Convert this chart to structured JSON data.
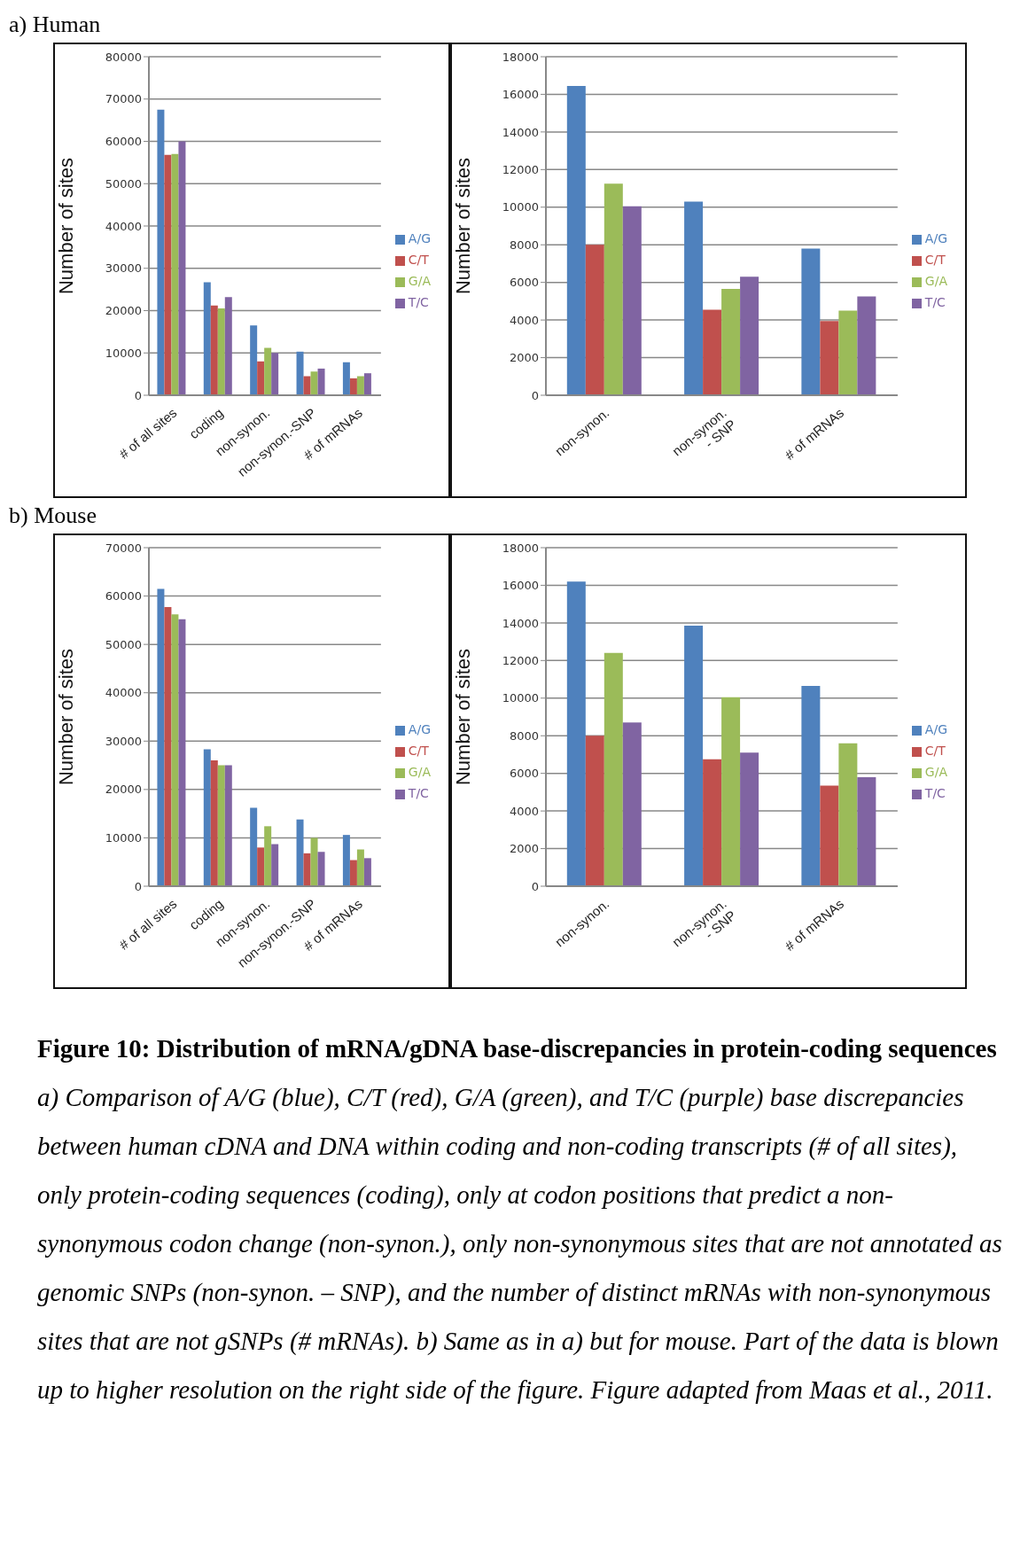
{
  "chart_data": [
    {
      "type": "bar",
      "title": "a) Human",
      "ylabel": "Number of sites",
      "categories": [
        "# of all sites",
        "coding",
        "non-synon.",
        "non-synon.-SNP",
        "# of mRNAs"
      ],
      "series": [
        {
          "name": "A/G",
          "color": "#4f81bd",
          "values": [
            67500,
            26700,
            16500,
            10300,
            7800
          ]
        },
        {
          "name": "C/T",
          "color": "#c0504d",
          "values": [
            56800,
            21200,
            8000,
            4500,
            4000
          ]
        },
        {
          "name": "G/A",
          "color": "#9bbb59",
          "values": [
            57000,
            20500,
            11200,
            5600,
            4500
          ]
        },
        {
          "name": "T/C",
          "color": "#8064a2",
          "values": [
            60000,
            23200,
            10000,
            6300,
            5200
          ]
        }
      ],
      "ylim": [
        0,
        80000
      ],
      "yticks": [
        0,
        10000,
        20000,
        30000,
        40000,
        50000,
        60000,
        70000,
        80000
      ],
      "grid": "y",
      "legend": "right"
    },
    {
      "type": "bar",
      "ylabel": "Number of sites",
      "categories": [
        "non-synon.",
        "non-synon.\n- SNP",
        "# of mRNAs"
      ],
      "series": [
        {
          "name": "A/G",
          "color": "#4f81bd",
          "values": [
            16450,
            10300,
            7800
          ]
        },
        {
          "name": "C/T",
          "color": "#c0504d",
          "values": [
            8000,
            4550,
            3950
          ]
        },
        {
          "name": "G/A",
          "color": "#9bbb59",
          "values": [
            11250,
            5650,
            4500
          ]
        },
        {
          "name": "T/C",
          "color": "#8064a2",
          "values": [
            10050,
            6300,
            5250
          ]
        }
      ],
      "ylim": [
        0,
        18000
      ],
      "yticks": [
        0,
        2000,
        4000,
        6000,
        8000,
        10000,
        12000,
        14000,
        16000,
        18000
      ],
      "grid": "y",
      "legend": "right"
    },
    {
      "type": "bar",
      "title": "b) Mouse",
      "ylabel": "Number of sites",
      "categories": [
        "# of all sites",
        "coding",
        "non-synon.",
        "non-synon.-SNP",
        "# of mRNAs"
      ],
      "series": [
        {
          "name": "A/G",
          "color": "#4f81bd",
          "values": [
            61500,
            28300,
            16200,
            13800,
            10600
          ]
        },
        {
          "name": "C/T",
          "color": "#c0504d",
          "values": [
            57700,
            26000,
            8000,
            6800,
            5400
          ]
        },
        {
          "name": "G/A",
          "color": "#9bbb59",
          "values": [
            56200,
            25000,
            12400,
            10000,
            7600
          ]
        },
        {
          "name": "T/C",
          "color": "#8064a2",
          "values": [
            55200,
            25000,
            8700,
            7100,
            5800
          ]
        }
      ],
      "ylim": [
        0,
        70000
      ],
      "yticks": [
        0,
        10000,
        20000,
        30000,
        40000,
        50000,
        60000,
        70000
      ],
      "grid": "y",
      "legend": "right"
    },
    {
      "type": "bar",
      "ylabel": "Number of sites",
      "categories": [
        "non-synon.",
        "non-synon.\n- SNP",
        "# of mRNAs"
      ],
      "series": [
        {
          "name": "A/G",
          "color": "#4f81bd",
          "values": [
            16200,
            13850,
            10650
          ]
        },
        {
          "name": "C/T",
          "color": "#c0504d",
          "values": [
            8000,
            6750,
            5350
          ]
        },
        {
          "name": "G/A",
          "color": "#9bbb59",
          "values": [
            12400,
            10050,
            7600
          ]
        },
        {
          "name": "T/C",
          "color": "#8064a2",
          "values": [
            8700,
            7100,
            5800
          ]
        }
      ],
      "ylim": [
        0,
        18000
      ],
      "yticks": [
        0,
        2000,
        4000,
        6000,
        8000,
        10000,
        12000,
        14000,
        16000,
        18000
      ],
      "grid": "y",
      "legend": "right",
      "annotations": [
        "Figure 10: Distribution of mRNA/gDNA base-discrepancies in protein-coding sequences",
        "a) Comparison of A/G (blue), C/T (red), G/A (green), and T/C (purple) base discrepancies between human cDNA and DNA within coding and non-coding transcripts (# of all sites), only protein-coding sequences (coding), only at codon positions that predict a non-synonymous codon change (non-synon.), only non-synonymous sites that are not annotated as genomic SNPs (non-synon. – SNP), and the number of distinct mRNAs with non-synonymous sites that are not gSNPs (# mRNAs). b) Same as in a) but for mouse. Part of the data is blown up to higher resolution on the right side of the figure. Figure adapted from Maas et al., 2011."
      ]
    }
  ]
}
